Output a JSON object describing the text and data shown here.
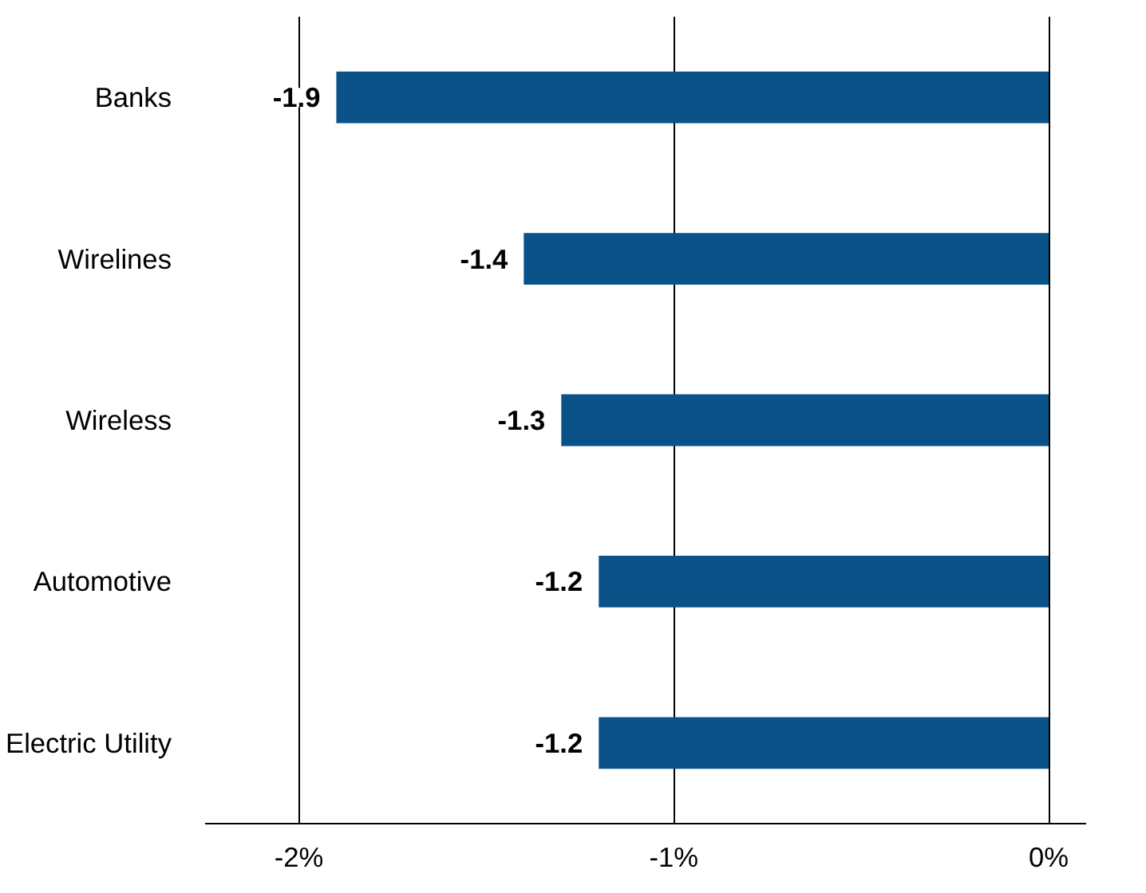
{
  "chart_data": {
    "type": "bar",
    "orientation": "horizontal",
    "categories": [
      "Banks",
      "Wirelines",
      "Wireless",
      "Automotive",
      "Electric Utility"
    ],
    "values": [
      -1.9,
      -1.4,
      -1.3,
      -1.2,
      -1.2
    ],
    "color": "#0b5289",
    "xlim": [
      -2.25,
      0.1
    ],
    "xticks": [
      {
        "value": -2,
        "label": "-2%"
      },
      {
        "value": -1,
        "label": "-1%"
      },
      {
        "value": 0,
        "label": "0%"
      }
    ],
    "grid": "x",
    "data_labels": true
  }
}
